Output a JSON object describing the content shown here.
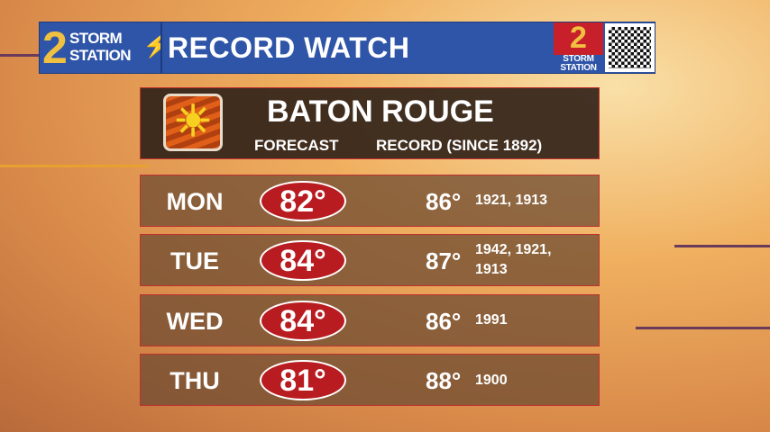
{
  "header": {
    "logo_number": "2",
    "logo_line1": "STORM",
    "logo_line2": "STATION",
    "title": "RECORD WATCH",
    "corner_logo_number": "2",
    "corner_logo_line1": "STORM",
    "corner_logo_line2": "STATION"
  },
  "panel": {
    "city": "BATON ROUGE",
    "forecast_label": "FORECAST",
    "record_label": "RECORD (SINCE 1892)",
    "icon": "hot-sun-icon"
  },
  "rows": [
    {
      "day": "MON",
      "forecast": "82°",
      "record": "86°",
      "years": "1921, 1913"
    },
    {
      "day": "TUE",
      "forecast": "84°",
      "record": "87°",
      "years": "1942, 1921, 1913"
    },
    {
      "day": "WED",
      "forecast": "84°",
      "record": "86°",
      "years": "1991"
    },
    {
      "day": "THU",
      "forecast": "81°",
      "record": "88°",
      "years": "1900"
    }
  ],
  "colors": {
    "header_blue": "#2f55a8",
    "forecast_red": "#b81c20",
    "border_red": "#c03030"
  }
}
